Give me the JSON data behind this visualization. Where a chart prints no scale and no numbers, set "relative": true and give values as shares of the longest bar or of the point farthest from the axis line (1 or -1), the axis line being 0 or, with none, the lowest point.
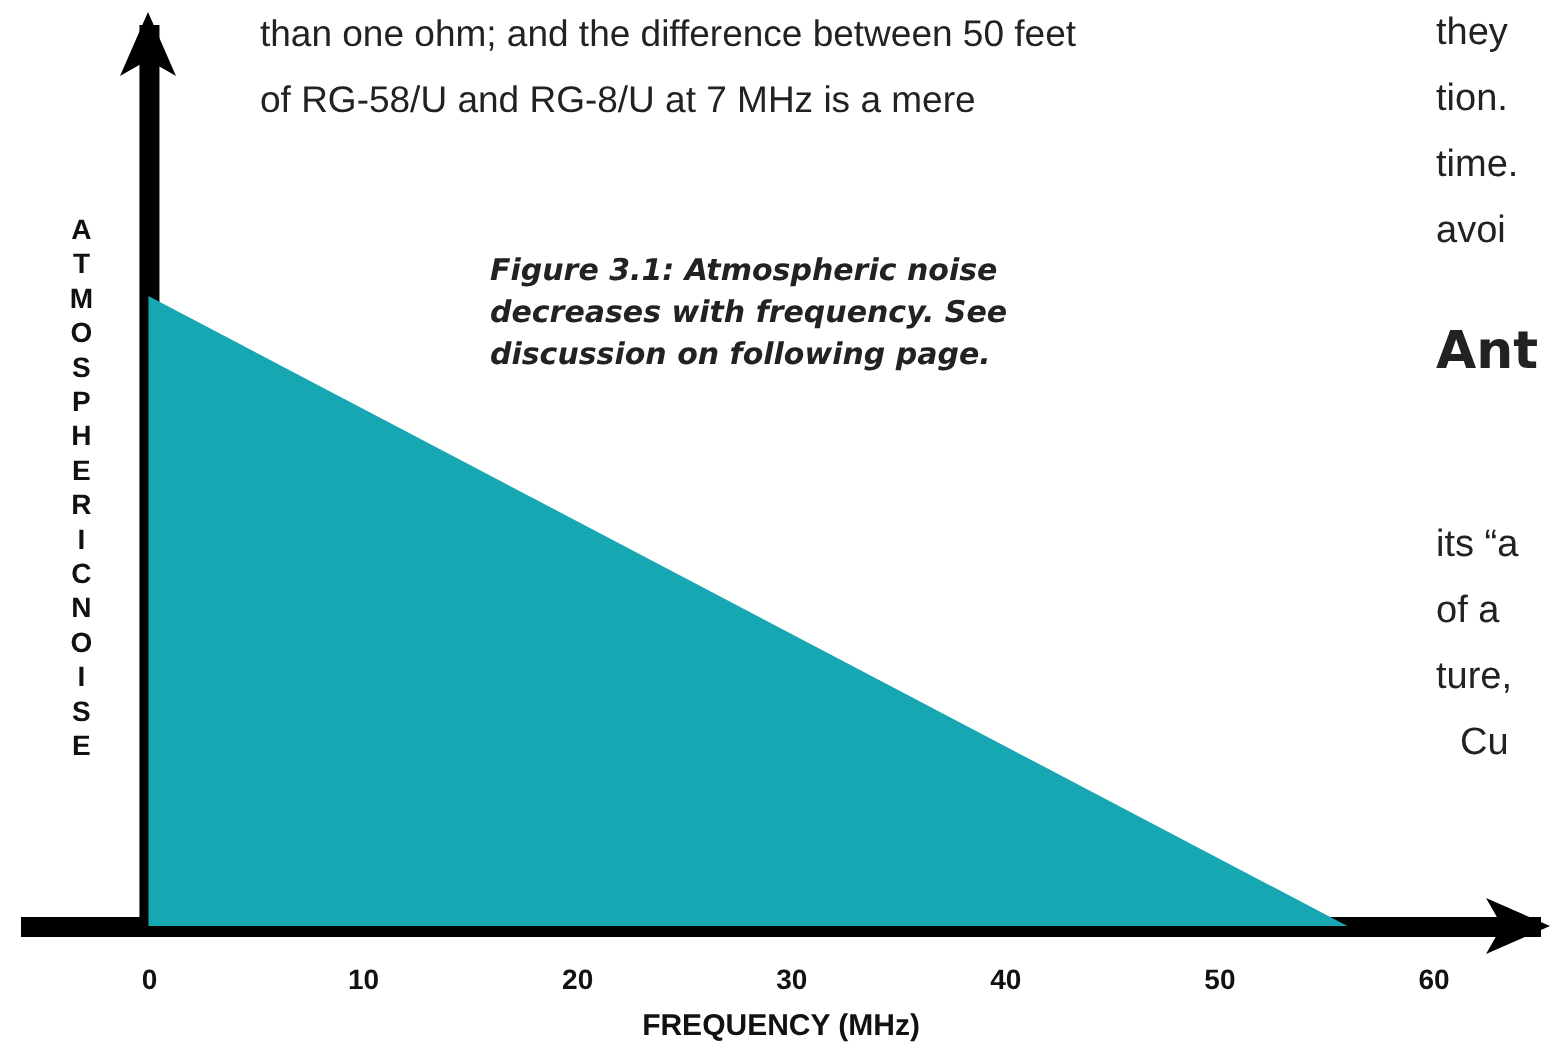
{
  "chart_data": {
    "type": "area",
    "relative": true,
    "xlabel": "FREQUENCY (MHz)",
    "ylabel": "ATMOSPHERIC NOISE",
    "x": [
      0,
      56
    ],
    "values": [
      1,
      0
    ],
    "color": "#17a7b3",
    "xlim": [
      -6,
      65
    ],
    "xticks": [
      0,
      10,
      20,
      30,
      40,
      50,
      60
    ],
    "annotations": [
      "than one ohm; and the difference between 50 feet of RG-58/U and RG-8/U at 7 MHz is a mere",
      "Figure 3.1: Atmospheric noise decreases with frequency. See discussion on following page.",
      "they",
      "tion.",
      "time.",
      "avoi",
      "Ant",
      "its “a",
      "of a",
      "ture,",
      "Cu"
    ]
  }
}
